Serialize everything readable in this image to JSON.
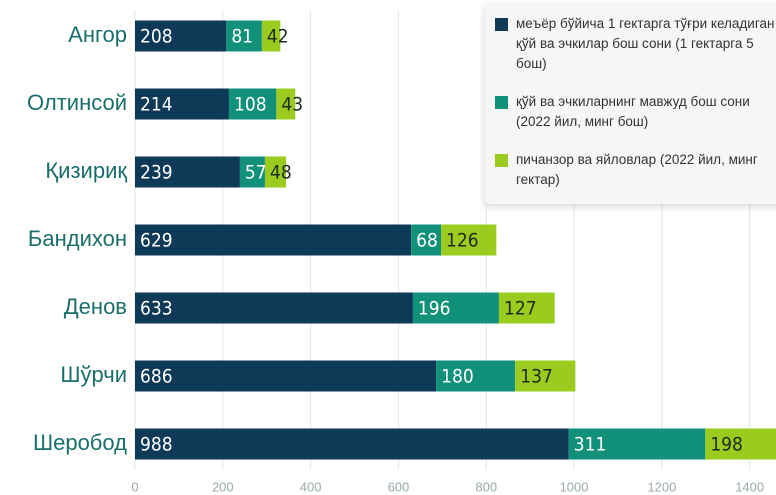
{
  "chart_data": {
    "type": "stacked_barh",
    "categories": [
      "Ангор",
      "Олтинсой",
      "Қизириқ",
      "Бандихон",
      "Денов",
      "Шўрчи",
      "Шеробод"
    ],
    "series": [
      {
        "name": "меъёр бўйича 1 гектарга тўғри келадиган қўй ва эчкилар бош сони (1 гектарга 5 бош)",
        "color": "#0e3a58",
        "values": [
          208,
          214,
          239,
          629,
          633,
          686,
          988
        ]
      },
      {
        "name": "қўй ва эчкиларнинг мавжуд бош сони (2022 йил, минг бош)",
        "color": "#12917a",
        "values": [
          81,
          108,
          57,
          68,
          196,
          180,
          311
        ]
      },
      {
        "name": "пичанзор ва яйловлар (2022 йил, минг гектар)",
        "color": "#9ccb1f",
        "values": [
          42,
          43,
          48,
          126,
          127,
          137,
          198
        ]
      }
    ],
    "xlim": [
      0,
      1460
    ],
    "xticks": [
      0,
      200,
      400,
      600,
      800,
      1000,
      1200,
      1400
    ],
    "grid": true
  }
}
